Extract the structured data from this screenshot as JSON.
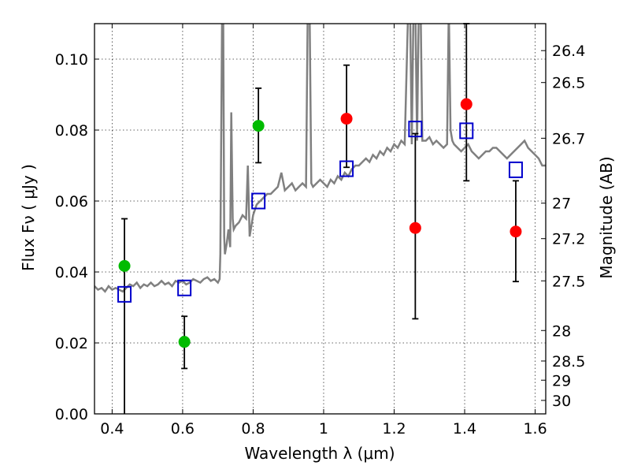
{
  "chart_data": {
    "type": "scatter",
    "title": "",
    "xlabel": "Wavelength  λ (μm)",
    "ylabel": "Flux  Fν  ( μJy )",
    "ylabel_right": "Magnitude (AB)",
    "xlim": [
      0.35,
      1.63
    ],
    "ylim": [
      0.0,
      0.11
    ],
    "x_ticks": [
      0.4,
      0.6,
      0.8,
      1.0,
      1.2,
      1.4,
      1.6
    ],
    "x_tick_labels": [
      "0.4",
      "0.6",
      "0.8",
      "1",
      "1.2",
      "1.4",
      "1.6"
    ],
    "y_ticks": [
      0.0,
      0.02,
      0.04,
      0.06,
      0.08,
      0.1
    ],
    "y_tick_labels": [
      "0.00",
      "0.02",
      "0.04",
      "0.06",
      "0.08",
      "0.10"
    ],
    "right_ticks": [
      {
        "label": "26.4",
        "flux": 0.1024
      },
      {
        "label": "26.5",
        "flux": 0.0934
      },
      {
        "label": "26.7",
        "flux": 0.0777
      },
      {
        "label": "27",
        "flux": 0.0594
      },
      {
        "label": "27.2",
        "flux": 0.0494
      },
      {
        "label": "27.5",
        "flux": 0.0375
      },
      {
        "label": "28",
        "flux": 0.0235
      },
      {
        "label": "28.5",
        "flux": 0.0149
      },
      {
        "label": "29",
        "flux": 0.0095
      },
      {
        "label": "30",
        "flux": 0.0038
      }
    ],
    "grid": true,
    "colors": {
      "model": "#808080",
      "green": "#00bb00",
      "red": "#ff0000",
      "square": "#0000cc",
      "errorbar": "#000000"
    },
    "series": [
      {
        "name": "model_spectrum",
        "style": "line",
        "x": [
          0.35,
          0.36,
          0.37,
          0.38,
          0.39,
          0.4,
          0.41,
          0.42,
          0.43,
          0.44,
          0.45,
          0.46,
          0.47,
          0.48,
          0.49,
          0.5,
          0.51,
          0.52,
          0.53,
          0.54,
          0.55,
          0.56,
          0.57,
          0.58,
          0.59,
          0.6,
          0.61,
          0.62,
          0.63,
          0.64,
          0.65,
          0.66,
          0.67,
          0.68,
          0.69,
          0.7,
          0.705,
          0.707,
          0.712,
          0.715,
          0.718,
          0.72,
          0.725,
          0.73,
          0.735,
          0.738,
          0.742,
          0.745,
          0.75,
          0.76,
          0.77,
          0.78,
          0.785,
          0.79,
          0.8,
          0.81,
          0.82,
          0.83,
          0.84,
          0.85,
          0.86,
          0.87,
          0.88,
          0.89,
          0.9,
          0.91,
          0.92,
          0.93,
          0.94,
          0.95,
          0.955,
          0.96,
          0.965,
          0.97,
          0.98,
          0.99,
          1.0,
          1.01,
          1.02,
          1.03,
          1.04,
          1.05,
          1.06,
          1.07,
          1.08,
          1.09,
          1.1,
          1.11,
          1.12,
          1.13,
          1.14,
          1.15,
          1.16,
          1.17,
          1.18,
          1.19,
          1.2,
          1.21,
          1.22,
          1.23,
          1.24,
          1.245,
          1.25,
          1.255,
          1.26,
          1.265,
          1.27,
          1.275,
          1.28,
          1.29,
          1.3,
          1.31,
          1.32,
          1.33,
          1.34,
          1.35,
          1.355,
          1.36,
          1.365,
          1.37,
          1.38,
          1.39,
          1.4,
          1.41,
          1.42,
          1.43,
          1.44,
          1.45,
          1.46,
          1.47,
          1.48,
          1.49,
          1.5,
          1.51,
          1.52,
          1.53,
          1.54,
          1.55,
          1.56,
          1.57,
          1.58,
          1.59,
          1.6,
          1.61,
          1.62,
          1.63
        ],
        "y": [
          0.036,
          0.035,
          0.0355,
          0.0345,
          0.036,
          0.035,
          0.0355,
          0.035,
          0.0345,
          0.0355,
          0.0365,
          0.036,
          0.037,
          0.0355,
          0.0365,
          0.036,
          0.037,
          0.036,
          0.0365,
          0.0375,
          0.0365,
          0.037,
          0.036,
          0.0375,
          0.037,
          0.0375,
          0.0365,
          0.037,
          0.038,
          0.0375,
          0.037,
          0.038,
          0.0385,
          0.0375,
          0.038,
          0.037,
          0.038,
          0.045,
          0.115,
          0.115,
          0.05,
          0.045,
          0.048,
          0.052,
          0.047,
          0.085,
          0.055,
          0.052,
          0.053,
          0.054,
          0.056,
          0.055,
          0.07,
          0.05,
          0.056,
          0.059,
          0.06,
          0.061,
          0.062,
          0.062,
          0.063,
          0.064,
          0.068,
          0.063,
          0.064,
          0.065,
          0.063,
          0.064,
          0.065,
          0.064,
          0.115,
          0.115,
          0.065,
          0.064,
          0.065,
          0.066,
          0.065,
          0.064,
          0.066,
          0.065,
          0.067,
          0.066,
          0.068,
          0.067,
          0.069,
          0.07,
          0.07,
          0.071,
          0.072,
          0.071,
          0.073,
          0.072,
          0.074,
          0.073,
          0.075,
          0.074,
          0.076,
          0.075,
          0.077,
          0.076,
          0.115,
          0.115,
          0.076,
          0.115,
          0.115,
          0.077,
          0.115,
          0.115,
          0.077,
          0.077,
          0.078,
          0.076,
          0.077,
          0.076,
          0.075,
          0.076,
          0.115,
          0.08,
          0.077,
          0.076,
          0.075,
          0.074,
          0.075,
          0.076,
          0.074,
          0.073,
          0.072,
          0.073,
          0.074,
          0.074,
          0.075,
          0.075,
          0.074,
          0.073,
          0.072,
          0.073,
          0.074,
          0.075,
          0.076,
          0.077,
          0.075,
          0.074,
          0.073,
          0.072,
          0.07,
          0.07
        ]
      },
      {
        "name": "green_points",
        "style": "circle",
        "points": [
          {
            "x": 0.435,
            "y": 0.0417,
            "yerr_low": null,
            "yerr_high": 0.055
          },
          {
            "x": 0.605,
            "y": 0.0203,
            "yerr_low": 0.0128,
            "yerr_high": 0.0275
          },
          {
            "x": 0.815,
            "y": 0.0812,
            "yerr_low": 0.0708,
            "yerr_high": 0.0918
          }
        ]
      },
      {
        "name": "red_points",
        "style": "circle",
        "points": [
          {
            "x": 1.065,
            "y": 0.0832,
            "yerr_low": 0.0695,
            "yerr_high": 0.0983
          },
          {
            "x": 1.26,
            "y": 0.0524,
            "yerr_low": 0.0268,
            "yerr_high": 0.079
          },
          {
            "x": 1.405,
            "y": 0.0873,
            "yerr_low": 0.0657,
            "yerr_high": 0.11
          },
          {
            "x": 1.545,
            "y": 0.0514,
            "yerr_low": 0.0373,
            "yerr_high": 0.0657
          }
        ]
      },
      {
        "name": "model_photometry",
        "style": "square",
        "points": [
          {
            "x": 0.435,
            "y": 0.0337
          },
          {
            "x": 0.605,
            "y": 0.0355
          },
          {
            "x": 0.815,
            "y": 0.06
          },
          {
            "x": 1.065,
            "y": 0.0691
          },
          {
            "x": 1.26,
            "y": 0.0803
          },
          {
            "x": 1.405,
            "y": 0.0798
          },
          {
            "x": 1.545,
            "y": 0.0688
          }
        ]
      }
    ]
  }
}
